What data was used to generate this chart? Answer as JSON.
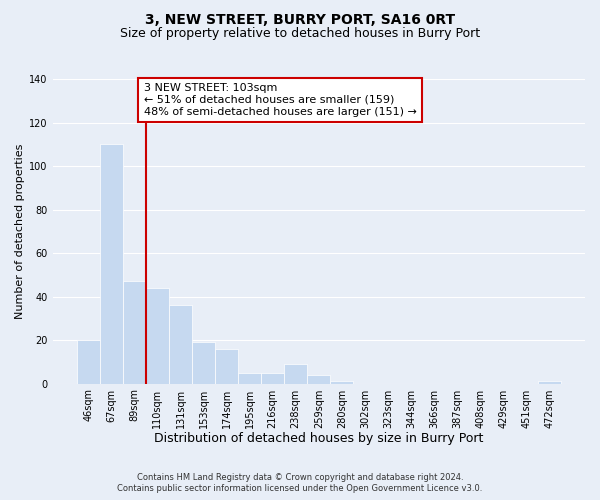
{
  "title": "3, NEW STREET, BURRY PORT, SA16 0RT",
  "subtitle": "Size of property relative to detached houses in Burry Port",
  "xlabel": "Distribution of detached houses by size in Burry Port",
  "ylabel": "Number of detached properties",
  "bar_labels": [
    "46sqm",
    "67sqm",
    "89sqm",
    "110sqm",
    "131sqm",
    "153sqm",
    "174sqm",
    "195sqm",
    "216sqm",
    "238sqm",
    "259sqm",
    "280sqm",
    "302sqm",
    "323sqm",
    "344sqm",
    "366sqm",
    "387sqm",
    "408sqm",
    "429sqm",
    "451sqm",
    "472sqm"
  ],
  "bar_heights": [
    20,
    110,
    47,
    44,
    36,
    19,
    16,
    5,
    5,
    9,
    4,
    1,
    0,
    0,
    0,
    0,
    0,
    0,
    0,
    0,
    1
  ],
  "bar_color": "#c6d9f0",
  "bar_edge_color": "#ffffff",
  "vline_x_index": 2.5,
  "vline_color": "#cc0000",
  "ylim": [
    0,
    140
  ],
  "yticks": [
    0,
    20,
    40,
    60,
    80,
    100,
    120,
    140
  ],
  "annotation_text": "3 NEW STREET: 103sqm\n← 51% of detached houses are smaller (159)\n48% of semi-detached houses are larger (151) →",
  "annotation_box_facecolor": "#ffffff",
  "annotation_box_edgecolor": "#cc0000",
  "footer_line1": "Contains HM Land Registry data © Crown copyright and database right 2024.",
  "footer_line2": "Contains public sector information licensed under the Open Government Licence v3.0.",
  "background_color": "#e8eef7",
  "plot_background": "#e8eef7",
  "grid_color": "#ffffff",
  "title_fontsize": 10,
  "subtitle_fontsize": 9,
  "xlabel_fontsize": 9,
  "ylabel_fontsize": 8,
  "tick_fontsize": 7,
  "annotation_fontsize": 8,
  "footer_fontsize": 6
}
